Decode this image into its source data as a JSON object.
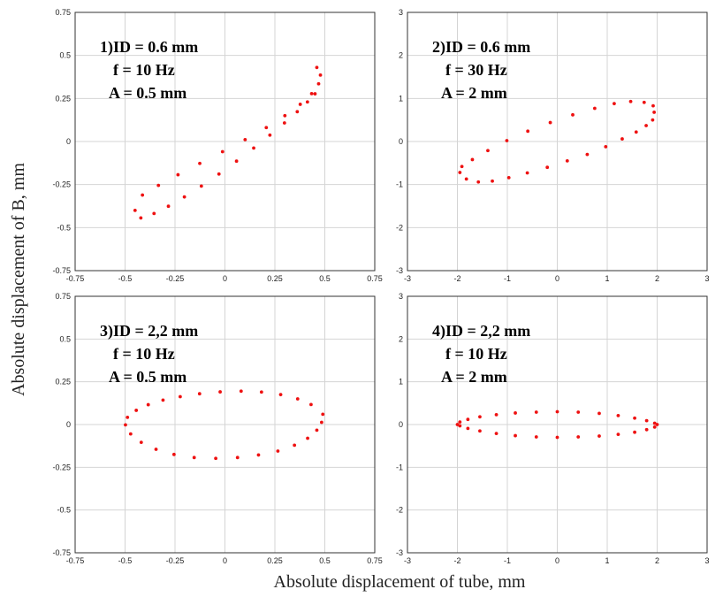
{
  "xlabel": "Absolute displacement  of tube, mm",
  "ylabel": "Absolute displacement  of B, mm",
  "point_color": "#ee1111",
  "grid_color": "#d4d4d4",
  "chart_data": [
    {
      "type": "scatter",
      "xlim": [
        -0.75,
        0.75
      ],
      "ylim": [
        -0.75,
        0.75
      ],
      "xticks": [
        -0.75,
        -0.5,
        -0.25,
        0,
        0.25,
        0.5,
        0.75
      ],
      "yticks": [
        -0.75,
        -0.5,
        -0.25,
        0,
        0.25,
        0.5,
        0.75
      ],
      "xtick_labels": [
        "-0.75",
        "-0.5",
        "-0.25",
        "0",
        "0.25",
        "0.5",
        "0.75"
      ],
      "ytick_labels": [
        "-0.75",
        "-0.5",
        "-0.25",
        "0",
        "0.25",
        "0.5",
        "0.75"
      ],
      "annotation": [
        "1)ID = 0.6 mm",
        "f  = 10 Hz",
        "A = 0.5 mm"
      ],
      "grid": true,
      "series": [
        {
          "points": [
            [
              0.46,
              0.43
            ],
            [
              0.478,
              0.386
            ],
            [
              0.469,
              0.335
            ],
            [
              0.434,
              0.278
            ],
            [
              0.377,
              0.216
            ],
            [
              0.3,
              0.15
            ],
            [
              0.207,
              0.081
            ],
            [
              0.101,
              0.011
            ],
            [
              -0.012,
              -0.059
            ],
            [
              -0.126,
              -0.127
            ],
            [
              -0.235,
              -0.193
            ],
            [
              -0.333,
              -0.255
            ],
            [
              -0.413,
              -0.311
            ],
            [
              -0.45,
              -0.4
            ],
            [
              -0.421,
              -0.444
            ],
            [
              -0.355,
              -0.418
            ],
            [
              -0.283,
              -0.376
            ],
            [
              -0.203,
              -0.322
            ],
            [
              -0.118,
              -0.259
            ],
            [
              -0.03,
              -0.189
            ],
            [
              0.058,
              -0.114
            ],
            [
              0.144,
              -0.038
            ],
            [
              0.225,
              0.037
            ],
            [
              0.298,
              0.108
            ],
            [
              0.362,
              0.173
            ],
            [
              0.413,
              0.23
            ],
            [
              0.451,
              0.277
            ]
          ]
        }
      ]
    },
    {
      "type": "scatter",
      "xlim": [
        -3,
        3
      ],
      "ylim": [
        -3,
        3
      ],
      "xticks": [
        -3,
        -2,
        -1,
        0,
        1,
        2,
        3
      ],
      "yticks": [
        -3,
        -2,
        -1,
        0,
        1,
        2,
        3
      ],
      "xtick_labels": [
        "-3",
        "-2",
        "-1",
        "0",
        "1",
        "2",
        "3"
      ],
      "ytick_labels": [
        "-3",
        "-2",
        "-1",
        "0",
        "1",
        "2",
        "3"
      ],
      "annotation": [
        "2)ID = 0.6 mm",
        "f  = 30 Hz",
        "A = 2 mm"
      ],
      "grid": true,
      "series": [
        {
          "points": [
            [
              1.94,
              0.68
            ],
            [
              1.91,
              0.5
            ],
            [
              1.78,
              0.37
            ],
            [
              1.58,
              0.22
            ],
            [
              1.3,
              0.06
            ],
            [
              0.97,
              -0.12
            ],
            [
              0.6,
              -0.3
            ],
            [
              0.2,
              -0.45
            ],
            [
              -0.2,
              -0.6
            ],
            [
              -0.6,
              -0.73
            ],
            [
              -0.97,
              -0.84
            ],
            [
              -1.3,
              -0.92
            ],
            [
              -1.58,
              -0.94
            ],
            [
              -1.82,
              -0.87
            ],
            [
              -1.95,
              -0.72
            ],
            [
              -1.91,
              -0.58
            ],
            [
              -1.7,
              -0.42
            ],
            [
              -1.39,
              -0.21
            ],
            [
              -1.01,
              0.02
            ],
            [
              -0.59,
              0.24
            ],
            [
              -0.14,
              0.44
            ],
            [
              0.31,
              0.62
            ],
            [
              0.75,
              0.77
            ],
            [
              1.14,
              0.88
            ],
            [
              1.47,
              0.93
            ],
            [
              1.74,
              0.91
            ],
            [
              1.92,
              0.83
            ]
          ]
        }
      ]
    },
    {
      "type": "scatter",
      "xlim": [
        -0.75,
        0.75
      ],
      "ylim": [
        -0.75,
        0.75
      ],
      "xticks": [
        -0.75,
        -0.5,
        -0.25,
        0,
        0.25,
        0.5,
        0.75
      ],
      "yticks": [
        -0.75,
        -0.5,
        -0.25,
        0,
        0.25,
        0.5,
        0.75
      ],
      "xtick_labels": [
        "-0.75",
        "-0.5",
        "-0.25",
        "0",
        "0.25",
        "0.5",
        "0.75"
      ],
      "ytick_labels": [
        "-0.75",
        "-0.5",
        "-0.25",
        "0",
        "0.25",
        "0.5",
        "0.75"
      ],
      "annotation": [
        "3)ID = 2,2 mm",
        "f  = 10 Hz",
        "A = 0.5 mm"
      ],
      "grid": true,
      "series": [
        {
          "points": [
            [
              0.49,
              0.06
            ],
            [
              0.484,
              0.013
            ],
            [
              0.46,
              -0.033
            ],
            [
              0.414,
              -0.08
            ],
            [
              0.348,
              -0.121
            ],
            [
              0.265,
              -0.155
            ],
            [
              0.168,
              -0.178
            ],
            [
              0.063,
              -0.193
            ],
            [
              -0.046,
              -0.198
            ],
            [
              -0.154,
              -0.193
            ],
            [
              -0.255,
              -0.175
            ],
            [
              -0.345,
              -0.145
            ],
            [
              -0.419,
              -0.104
            ],
            [
              -0.472,
              -0.055
            ],
            [
              -0.498,
              -0.002
            ],
            [
              -0.488,
              0.042
            ],
            [
              -0.444,
              0.083
            ],
            [
              -0.384,
              0.116
            ],
            [
              -0.31,
              0.143
            ],
            [
              -0.224,
              0.163
            ],
            [
              -0.127,
              0.18
            ],
            [
              -0.024,
              0.191
            ],
            [
              0.081,
              0.195
            ],
            [
              0.183,
              0.19
            ],
            [
              0.279,
              0.175
            ],
            [
              0.364,
              0.15
            ],
            [
              0.431,
              0.117
            ]
          ]
        }
      ]
    },
    {
      "type": "scatter",
      "xlim": [
        -3,
        3
      ],
      "ylim": [
        -3,
        3
      ],
      "xticks": [
        -3,
        -2,
        -1,
        0,
        1,
        2,
        3
      ],
      "yticks": [
        -3,
        -2,
        -1,
        0,
        1,
        2,
        3
      ],
      "xtick_labels": [
        "-3",
        "-2",
        "-1",
        "0",
        "1",
        "2",
        "3"
      ],
      "ytick_labels": [
        "-3",
        "-2",
        "-1",
        "0",
        "1",
        "2",
        "3"
      ],
      "annotation": [
        "4)ID = 2,2 mm",
        "f  = 10 Hz",
        "A = 2 mm"
      ],
      "grid": true,
      "series": [
        {
          "points": [
            [
              2.0,
              0.0
            ],
            [
              1.95,
              -0.06
            ],
            [
              1.79,
              -0.12
            ],
            [
              1.55,
              -0.18
            ],
            [
              1.22,
              -0.23
            ],
            [
              0.84,
              -0.27
            ],
            [
              0.42,
              -0.29
            ],
            [
              0.0,
              -0.3
            ],
            [
              -0.42,
              -0.29
            ],
            [
              -0.84,
              -0.26
            ],
            [
              -1.22,
              -0.21
            ],
            [
              -1.55,
              -0.15
            ],
            [
              -1.79,
              -0.09
            ],
            [
              -1.95,
              -0.03
            ],
            [
              -2.0,
              0.0
            ],
            [
              -1.95,
              0.06
            ],
            [
              -1.79,
              0.12
            ],
            [
              -1.55,
              0.18
            ],
            [
              -1.22,
              0.23
            ],
            [
              -0.84,
              0.27
            ],
            [
              -0.42,
              0.29
            ],
            [
              0.0,
              0.3
            ],
            [
              0.42,
              0.29
            ],
            [
              0.84,
              0.26
            ],
            [
              1.22,
              0.21
            ],
            [
              1.55,
              0.15
            ],
            [
              1.79,
              0.09
            ],
            [
              1.95,
              0.03
            ]
          ]
        }
      ]
    }
  ]
}
